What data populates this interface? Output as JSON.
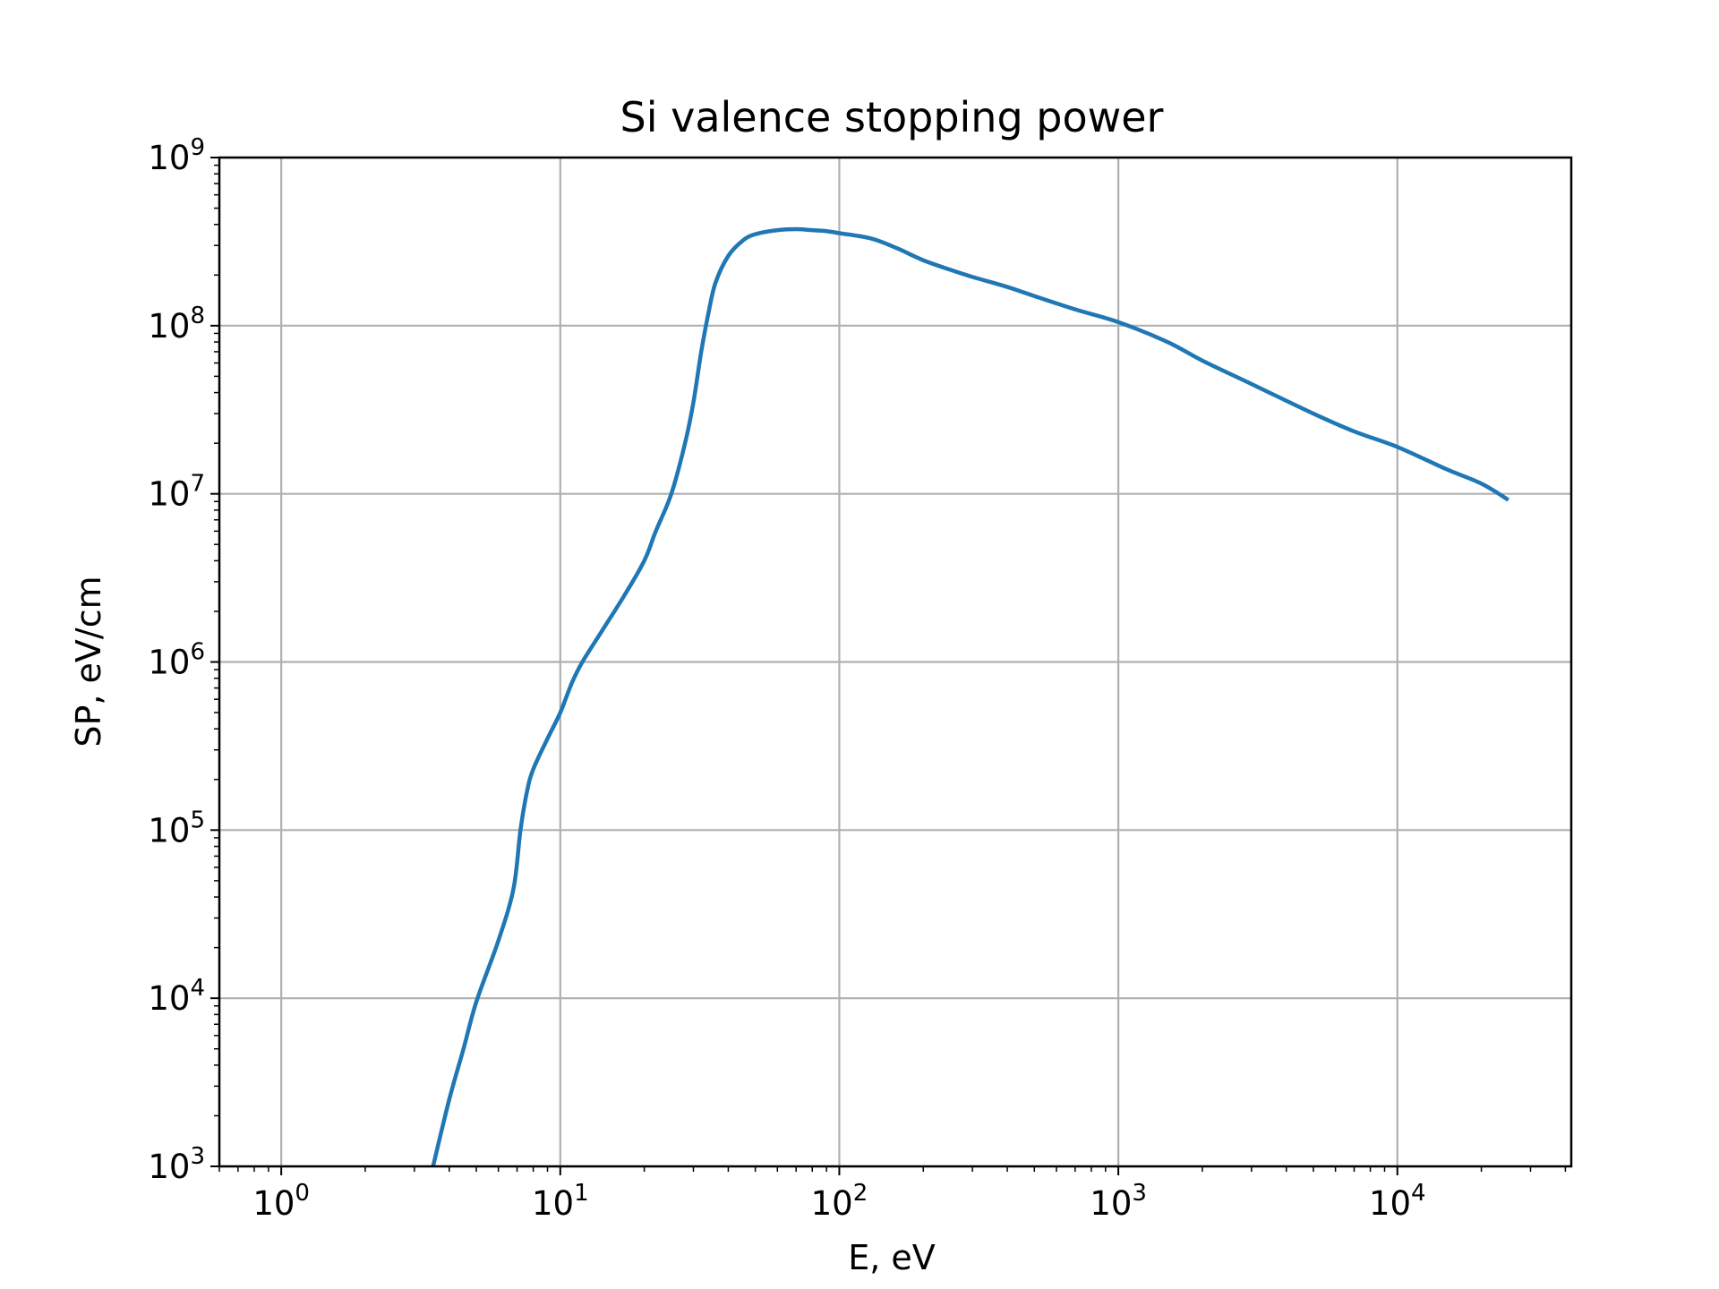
{
  "chart_data": {
    "type": "line",
    "title": "Si valence stopping power",
    "xlabel": "E, eV",
    "ylabel": "SP, eV/cm",
    "xscale": "log",
    "yscale": "log",
    "xlim": [
      0.6,
      42000
    ],
    "ylim": [
      1000,
      1000000000
    ],
    "grid": true,
    "x_ticks": [
      {
        "base": "10",
        "exp": "0",
        "value": 1
      },
      {
        "base": "10",
        "exp": "1",
        "value": 10
      },
      {
        "base": "10",
        "exp": "2",
        "value": 100
      },
      {
        "base": "10",
        "exp": "3",
        "value": 1000
      },
      {
        "base": "10",
        "exp": "4",
        "value": 10000
      }
    ],
    "y_ticks": [
      {
        "base": "10",
        "exp": "3",
        "value": 1000
      },
      {
        "base": "10",
        "exp": "4",
        "value": 10000
      },
      {
        "base": "10",
        "exp": "5",
        "value": 100000
      },
      {
        "base": "10",
        "exp": "6",
        "value": 1000000
      },
      {
        "base": "10",
        "exp": "7",
        "value": 10000000
      },
      {
        "base": "10",
        "exp": "8",
        "value": 100000000
      },
      {
        "base": "10",
        "exp": "9",
        "value": 1000000000
      }
    ],
    "series": [
      {
        "color": "#1f77b4",
        "x": [
          3.5,
          4.0,
          4.5,
          5.0,
          6.0,
          6.8,
          7.2,
          7.6,
          8.0,
          9.0,
          10.0,
          11.0,
          12.0,
          14.0,
          17.0,
          20.0,
          22.0,
          25.0,
          28.0,
          30.0,
          32.0,
          34.0,
          36.0,
          40.0,
          45.0,
          50.0,
          60.0,
          70.0,
          80.0,
          90.0,
          100.0,
          130.0,
          160.0,
          200.0,
          250.0,
          300.0,
          400.0,
          500.0,
          700.0,
          1000.0,
          1500.0,
          2000.0,
          3000.0,
          5000.0,
          7000.0,
          10000.0,
          15000.0,
          20000.0,
          25000.0
        ],
        "y": [
          1000,
          2500,
          5000,
          9500,
          22000,
          45000,
          100000,
          170000,
          230000,
          350000,
          500000,
          750000,
          1000000,
          1500000,
          2500000,
          4000000,
          6000000,
          10000000,
          20000000,
          35000000,
          70000000,
          120000000,
          180000000,
          260000000,
          320000000,
          350000000,
          370000000,
          375000000,
          370000000,
          365000000,
          355000000,
          330000000,
          290000000,
          245000000,
          215000000,
          195000000,
          170000000,
          150000000,
          125000000,
          105000000,
          80000000,
          62000000,
          45000000,
          30000000,
          23500000,
          19000000,
          14000000,
          11500000,
          9200000
        ]
      }
    ]
  }
}
